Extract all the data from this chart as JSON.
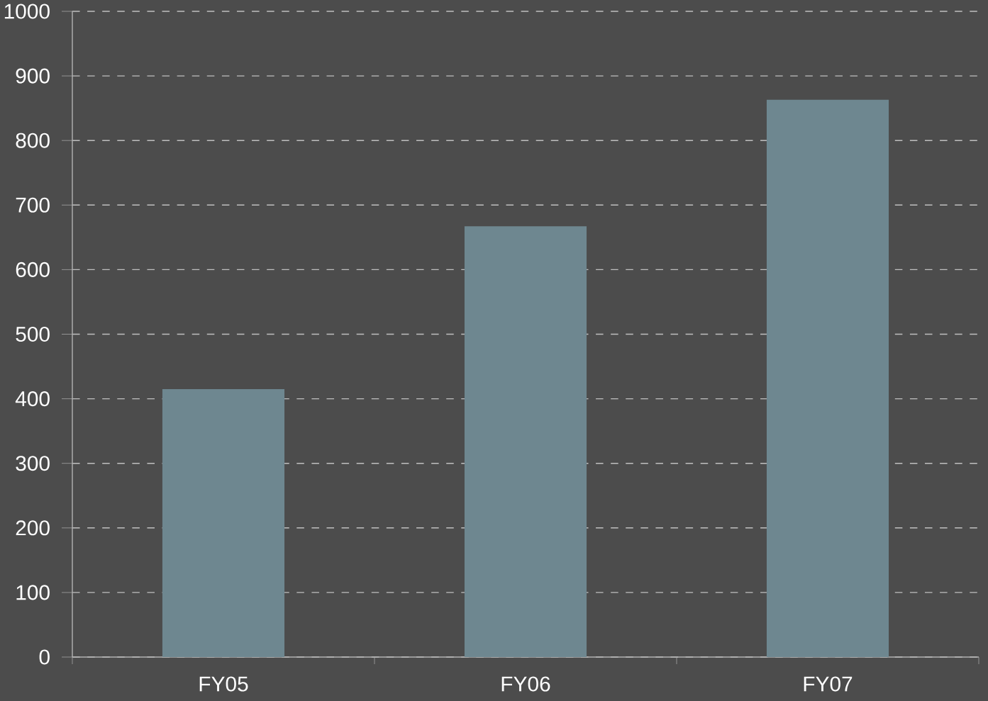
{
  "chart_data": {
    "type": "bar",
    "categories": [
      "FY05",
      "FY06",
      "FY07"
    ],
    "values": [
      415,
      667,
      863
    ],
    "color": "#6e8790",
    "ylim": [
      0,
      1000
    ],
    "yticks": [
      0,
      100,
      200,
      300,
      400,
      500,
      600,
      700,
      800,
      900,
      1000
    ],
    "grid": "y"
  }
}
